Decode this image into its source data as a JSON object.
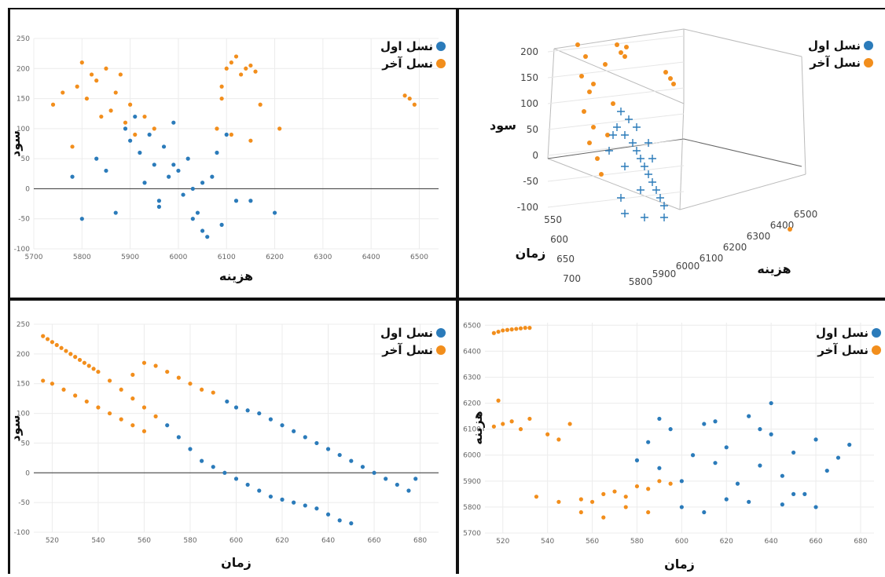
{
  "colors": {
    "first": "#2b7bba",
    "last": "#f28e1c"
  },
  "legend": {
    "first": "نسل اول",
    "last": "نسل آخر"
  },
  "chart_data": [
    {
      "type": "scatter",
      "xlabel": "هزینه",
      "ylabel": "سود",
      "xlim": [
        5700,
        6540
      ],
      "ylim": [
        -100,
        250
      ],
      "xticks": [
        "5700",
        "5800",
        "5900",
        "6000",
        "6100",
        "6200",
        "6300",
        "6400",
        "6500"
      ],
      "yticks": [
        "-100",
        "-50",
        "0",
        "50",
        "100",
        "150",
        "200",
        "250"
      ],
      "series": [
        {
          "name": "نسل اول",
          "x": [
            5780,
            5800,
            5830,
            5850,
            5870,
            5890,
            5900,
            5910,
            5920,
            5930,
            5940,
            5950,
            5960,
            5970,
            5980,
            5990,
            6000,
            6010,
            6020,
            6030,
            6040,
            6050,
            6060,
            6070,
            6080,
            6090,
            6100,
            6120,
            5960,
            5990,
            6030,
            6050,
            6150,
            6200
          ],
          "y": [
            20,
            -50,
            50,
            30,
            -40,
            100,
            80,
            120,
            60,
            10,
            90,
            40,
            -20,
            70,
            20,
            110,
            30,
            -10,
            50,
            0,
            -40,
            10,
            -80,
            20,
            60,
            -60,
            90,
            -20,
            -30,
            40,
            -50,
            -70,
            -20,
            -40
          ]
        },
        {
          "name": "نسل آخر",
          "x": [
            5740,
            5760,
            5780,
            5790,
            5800,
            5810,
            5820,
            5830,
            5840,
            5850,
            5860,
            5870,
            5880,
            5890,
            5900,
            5910,
            5930,
            5950,
            6080,
            6090,
            6100,
            6110,
            6120,
            6130,
            6140,
            6150,
            6160,
            6170,
            6090,
            6110,
            6150,
            6210,
            6470,
            6480,
            6490
          ],
          "y": [
            140,
            160,
            70,
            170,
            210,
            150,
            190,
            180,
            120,
            200,
            130,
            160,
            190,
            110,
            140,
            90,
            120,
            100,
            100,
            170,
            200,
            210,
            220,
            190,
            200,
            205,
            195,
            140,
            150,
            90,
            80,
            100,
            155,
            150,
            140
          ]
        }
      ]
    },
    {
      "type": "scatter3d",
      "xlabel": "هزینه",
      "ylabel": "زمان",
      "zlabel": "سود",
      "zticks": [
        "-100",
        "-50",
        "0",
        "50",
        "100",
        "150",
        "200"
      ],
      "ticks_zaman": [
        "550",
        "600",
        "650",
        "700"
      ],
      "ticks_hazine": [
        "5800",
        "5900",
        "6000",
        "6100",
        "6200",
        "6300",
        "6400",
        "6500"
      ]
    },
    {
      "type": "scatter",
      "xlabel": "زمان",
      "ylabel": "سود",
      "xlim": [
        512,
        688
      ],
      "ylim": [
        -100,
        250
      ],
      "xticks": [
        "520",
        "540",
        "560",
        "580",
        "600",
        "620",
        "640",
        "660",
        "680"
      ],
      "yticks": [
        "-100",
        "-50",
        "0",
        "50",
        "100",
        "150",
        "200",
        "250"
      ],
      "series": [
        {
          "name": "نسل اول",
          "x": [
            570,
            575,
            580,
            585,
            590,
            595,
            600,
            605,
            610,
            615,
            620,
            625,
            630,
            635,
            640,
            645,
            650,
            596,
            600,
            605,
            610,
            615,
            620,
            625,
            630,
            635,
            640,
            645,
            650,
            655,
            660,
            665,
            670,
            675,
            678
          ],
          "y": [
            80,
            60,
            40,
            20,
            10,
            0,
            -10,
            -20,
            -30,
            -40,
            -45,
            -50,
            -55,
            -60,
            -70,
            -80,
            -85,
            120,
            110,
            105,
            100,
            90,
            80,
            70,
            60,
            50,
            40,
            30,
            20,
            10,
            0,
            -10,
            -20,
            -30,
            -10
          ]
        },
        {
          "name": "نسل آخر",
          "x": [
            516,
            518,
            520,
            522,
            524,
            526,
            528,
            530,
            532,
            534,
            536,
            538,
            540,
            545,
            550,
            555,
            560,
            565,
            516,
            520,
            525,
            530,
            535,
            540,
            545,
            550,
            555,
            560,
            560,
            565,
            570,
            575,
            580,
            585,
            590,
            555
          ],
          "y": [
            230,
            225,
            220,
            215,
            210,
            205,
            200,
            195,
            190,
            185,
            180,
            175,
            170,
            155,
            140,
            125,
            110,
            95,
            155,
            150,
            140,
            130,
            120,
            110,
            100,
            90,
            80,
            70,
            185,
            180,
            170,
            160,
            150,
            140,
            135,
            165
          ]
        }
      ]
    },
    {
      "type": "scatter",
      "xlabel": "زمان",
      "ylabel": "هزینه",
      "xlim": [
        512,
        686
      ],
      "ylim": [
        5700,
        6510
      ],
      "xticks": [
        "520",
        "540",
        "560",
        "580",
        "600",
        "620",
        "640",
        "660",
        "680"
      ],
      "yticks": [
        "5700",
        "5800",
        "5900",
        "6000",
        "6100",
        "6200",
        "6300",
        "6400",
        "6500"
      ],
      "series": [
        {
          "name": "نسل اول",
          "x": [
            580,
            585,
            590,
            595,
            600,
            605,
            610,
            615,
            620,
            625,
            630,
            635,
            640,
            645,
            650,
            655,
            660,
            665,
            670,
            675,
            600,
            610,
            620,
            630,
            640,
            650,
            660,
            590,
            615,
            635,
            645
          ],
          "y": [
            5980,
            6050,
            5950,
            6100,
            5900,
            6000,
            6120,
            5970,
            6030,
            5890,
            6150,
            5960,
            6080,
            5920,
            6010,
            5850,
            6060,
            5940,
            5990,
            6040,
            5800,
            5780,
            5830,
            5820,
            6200,
            5850,
            5800,
            6140,
            6130,
            6100,
            5810
          ]
        },
        {
          "name": "نسل آخر",
          "x": [
            516,
            518,
            520,
            522,
            524,
            526,
            528,
            530,
            532,
            516,
            520,
            524,
            528,
            532,
            540,
            545,
            550,
            555,
            560,
            565,
            570,
            575,
            580,
            585,
            590,
            595,
            535,
            545,
            555,
            565,
            575,
            585,
            518
          ],
          "y": [
            6470,
            6475,
            6480,
            6482,
            6484,
            6486,
            6488,
            6490,
            6490,
            6110,
            6120,
            6130,
            6100,
            6140,
            6080,
            6060,
            6120,
            5830,
            5820,
            5850,
            5860,
            5840,
            5880,
            5870,
            5900,
            5890,
            5840,
            5820,
            5780,
            5760,
            5800,
            5780,
            6210
          ]
        }
      ]
    }
  ]
}
